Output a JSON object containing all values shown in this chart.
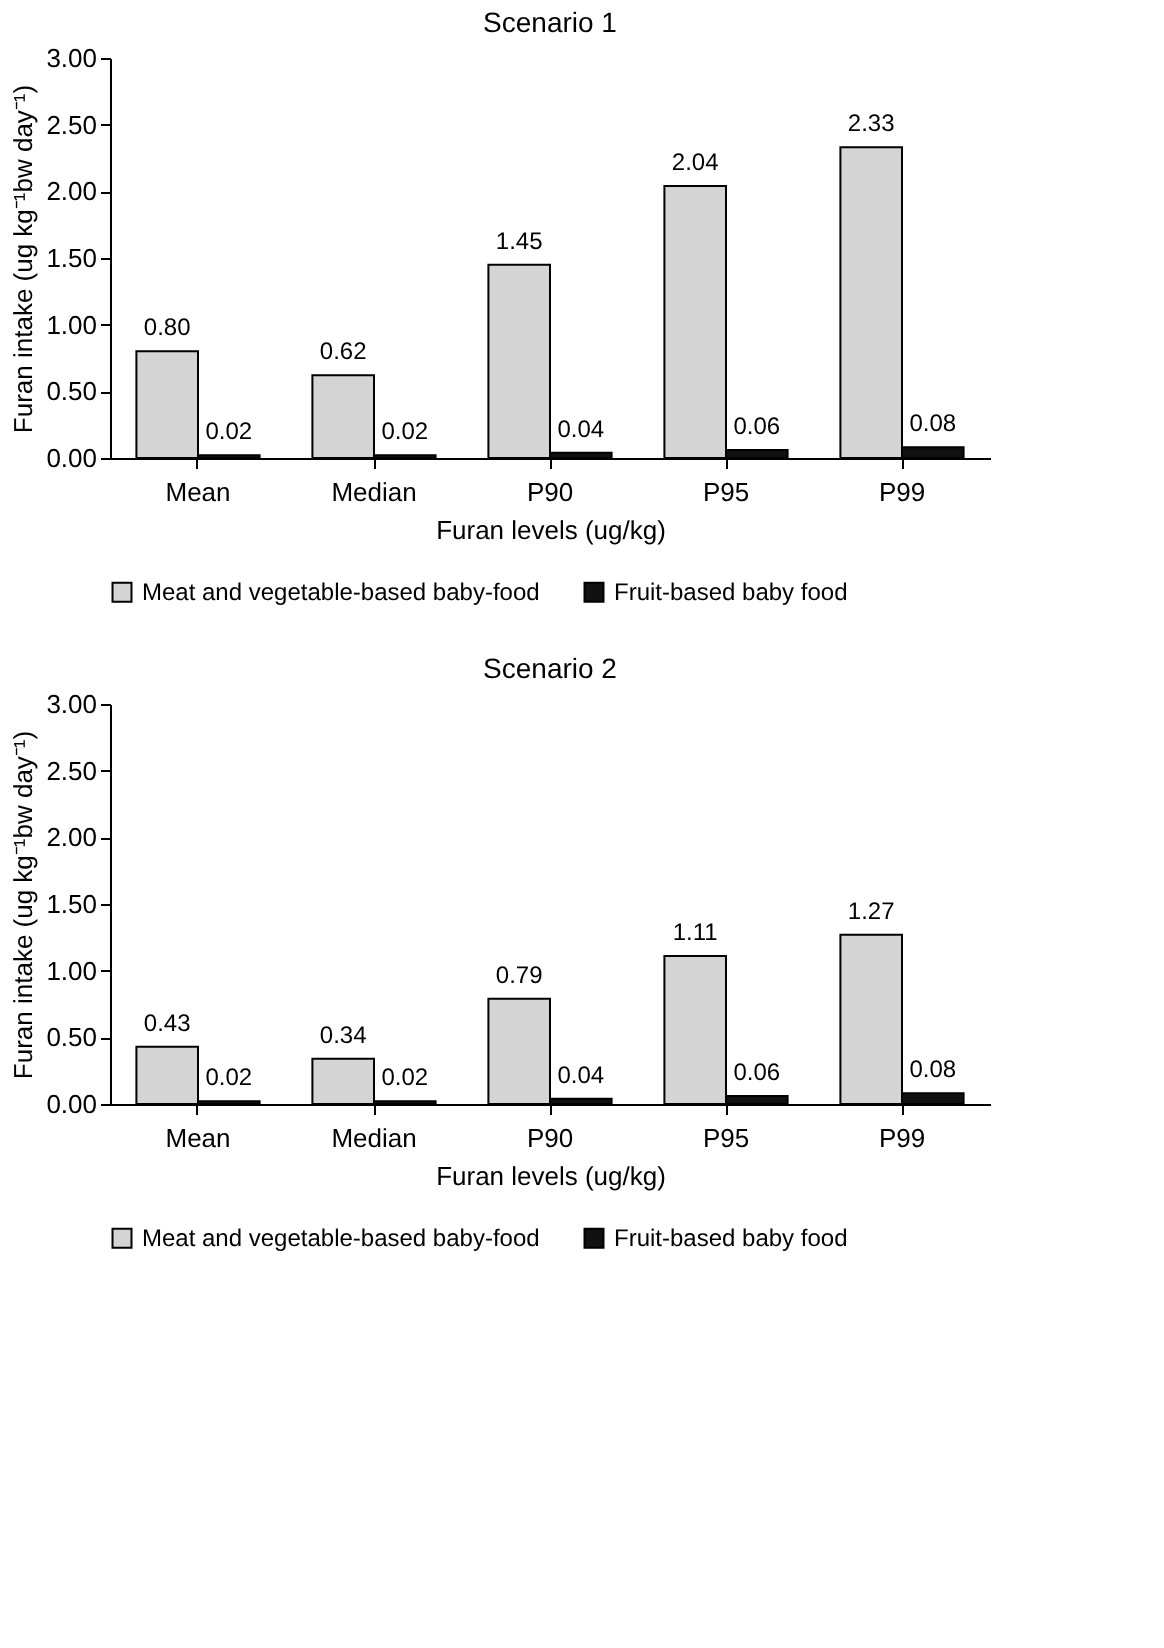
{
  "chart_data": [
    {
      "type": "bar",
      "title": "Scenario 1",
      "xlabel": "Furan levels (ug/kg)",
      "ylabel": "Furan intake (ug kg⁻¹bw day⁻¹)",
      "categories": [
        "Mean",
        "Median",
        "P90",
        "P95",
        "P99"
      ],
      "series": [
        {
          "name": "Meat and vegetable-based baby-food",
          "color": "#d4d4d4",
          "values": [
            0.8,
            0.62,
            1.45,
            2.04,
            2.33
          ],
          "value_labels": [
            "0.80",
            "0.62",
            "1.45",
            "2.04",
            "2.33"
          ]
        },
        {
          "name": "Fruit-based baby food",
          "color": "#111111",
          "values": [
            0.02,
            0.02,
            0.04,
            0.06,
            0.08
          ],
          "value_labels": [
            "0.02",
            "0.02",
            "0.04",
            "0.06",
            "0.08"
          ]
        }
      ],
      "ylim": [
        0,
        3
      ],
      "yticks": [
        {
          "value": 0,
          "label": "0.00"
        },
        {
          "value": 0.5,
          "label": "0.50"
        },
        {
          "value": 1,
          "label": "1.00"
        },
        {
          "value": 1.5,
          "label": "1.50"
        },
        {
          "value": 2,
          "label": "2.00"
        },
        {
          "value": 2.5,
          "label": "2.50"
        },
        {
          "value": 3,
          "label": "3.00"
        }
      ],
      "grid": false,
      "legend": "bottom"
    },
    {
      "type": "bar",
      "title": "Scenario 2",
      "xlabel": "Furan levels (ug/kg)",
      "ylabel": "Furan intake (ug kg⁻¹bw day⁻¹)",
      "categories": [
        "Mean",
        "Median",
        "P90",
        "P95",
        "P99"
      ],
      "series": [
        {
          "name": "Meat and vegetable-based baby-food",
          "color": "#d4d4d4",
          "values": [
            0.43,
            0.34,
            0.79,
            1.11,
            1.27
          ],
          "value_labels": [
            "0.43",
            "0.34",
            "0.79",
            "1.11",
            "1.27"
          ]
        },
        {
          "name": "Fruit-based baby food",
          "color": "#111111",
          "values": [
            0.02,
            0.02,
            0.04,
            0.06,
            0.08
          ],
          "value_labels": [
            "0.02",
            "0.02",
            "0.04",
            "0.06",
            "0.08"
          ]
        }
      ],
      "ylim": [
        0,
        3
      ],
      "yticks": [
        {
          "value": 0,
          "label": "0.00"
        },
        {
          "value": 0.5,
          "label": "0.50"
        },
        {
          "value": 1,
          "label": "1.00"
        },
        {
          "value": 1.5,
          "label": "1.50"
        },
        {
          "value": 2,
          "label": "2.00"
        },
        {
          "value": 2.5,
          "label": "2.50"
        },
        {
          "value": 3,
          "label": "3.00"
        }
      ],
      "grid": false,
      "legend": "bottom"
    }
  ]
}
